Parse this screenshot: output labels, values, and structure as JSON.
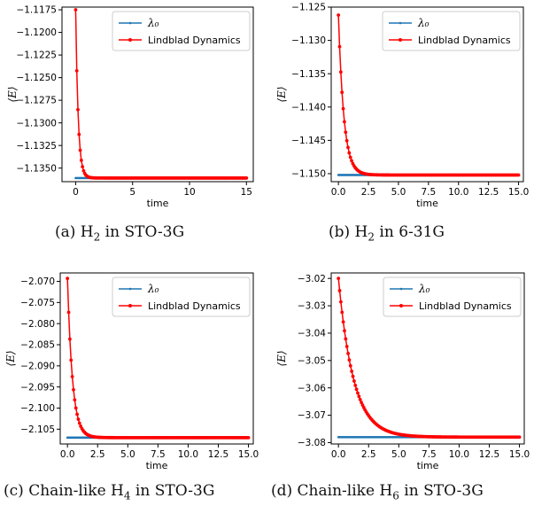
{
  "chart_data": [
    {
      "type": "line",
      "caption": {
        "prefix": "(a) H",
        "sub": "2",
        "suffix": " in STO-3G"
      },
      "xlabel": "time",
      "ylabel": "⟨E⟩",
      "xlim": [
        -1.2,
        15.6
      ],
      "ylim": [
        -1.1365,
        -1.1172
      ],
      "xticks": [
        0,
        5,
        10,
        15
      ],
      "xtick_labels": [
        "0",
        "5",
        "10",
        "15"
      ],
      "yticks": [
        -1.1175,
        -1.12,
        -1.1225,
        -1.125,
        -1.1275,
        -1.13,
        -1.1325,
        -1.135
      ],
      "ytick_labels": [
        "−1.1175",
        "−1.1200",
        "−1.1225",
        "−1.1250",
        "−1.1275",
        "−1.1300",
        "−1.1325",
        "−1.1350"
      ],
      "legend_position": "top-right",
      "series": [
        {
          "name": "λ₀",
          "color": "#1f77b4",
          "kind": "constant",
          "value": -1.1361,
          "t_end": 15,
          "n_points": 151
        },
        {
          "name": "Lindblad Dynamics",
          "color": "#ff0000",
          "kind": "relaxation",
          "start": -1.1175,
          "end": -1.1361,
          "rate": 4.5,
          "t_end": 15,
          "n_points": 151
        }
      ]
    },
    {
      "type": "line",
      "caption": {
        "prefix": "(b) H",
        "sub": "2",
        "suffix": " in 6-31G"
      },
      "xlabel": "time",
      "ylabel": "⟨E⟩",
      "xlim": [
        -0.6,
        15.4
      ],
      "ylim": [
        -1.1512,
        -1.125
      ],
      "xticks": [
        0,
        2.5,
        5,
        7.5,
        10,
        12.5,
        15
      ],
      "xtick_labels": [
        "0.0",
        "2.5",
        "5.0",
        "7.5",
        "10.0",
        "12.5",
        "15.0"
      ],
      "yticks": [
        -1.125,
        -1.13,
        -1.135,
        -1.14,
        -1.145,
        -1.15
      ],
      "ytick_labels": [
        "−1.125",
        "−1.130",
        "−1.135",
        "−1.140",
        "−1.145",
        "−1.150"
      ],
      "legend_position": "top-right",
      "series": [
        {
          "name": "λ₀",
          "color": "#1f77b4",
          "kind": "constant",
          "value": -1.1502,
          "t_end": 15,
          "n_points": 151
        },
        {
          "name": "Lindblad Dynamics",
          "color": "#ff0000",
          "kind": "relaxation",
          "start": -1.1262,
          "end": -1.1502,
          "rate": 2.2,
          "t_end": 15,
          "n_points": 151
        }
      ]
    },
    {
      "type": "line",
      "caption": {
        "prefix": "(c) Chain-like H",
        "sub": "4",
        "suffix": " in STO-3G"
      },
      "xlabel": "time",
      "ylabel": "⟨E⟩",
      "xlim": [
        -0.6,
        15.4
      ],
      "ylim": [
        -2.1085,
        -2.068
      ],
      "xticks": [
        0,
        2.5,
        5,
        7.5,
        10,
        12.5,
        15
      ],
      "xtick_labels": [
        "0.0",
        "2.5",
        "5.0",
        "7.5",
        "10.0",
        "12.5",
        "15.0"
      ],
      "yticks": [
        -2.07,
        -2.075,
        -2.08,
        -2.085,
        -2.09,
        -2.095,
        -2.1,
        -2.105
      ],
      "ytick_labels": [
        "−2.070",
        "−2.075",
        "−2.080",
        "−2.085",
        "−2.090",
        "−2.095",
        "−2.100",
        "−2.105"
      ],
      "legend_position": "top-right",
      "series": [
        {
          "name": "λ₀",
          "color": "#1f77b4",
          "kind": "constant",
          "value": -2.107,
          "t_end": 15,
          "n_points": 151
        },
        {
          "name": "Lindblad Dynamics",
          "color": "#ff0000",
          "kind": "relaxation",
          "start": -2.0693,
          "end": -2.107,
          "rate": 2.4,
          "t_end": 15,
          "n_points": 151
        }
      ]
    },
    {
      "type": "line",
      "caption": {
        "prefix": "(d) Chain-like H",
        "sub": "6",
        "suffix": " in STO-3G"
      },
      "xlabel": "time",
      "ylabel": "⟨E⟩",
      "xlim": [
        -0.6,
        15.4
      ],
      "ylim": [
        -3.0805,
        -3.018
      ],
      "xticks": [
        0,
        2.5,
        5,
        7.5,
        10,
        12.5,
        15
      ],
      "xtick_labels": [
        "0.0",
        "2.5",
        "5.0",
        "7.5",
        "10.0",
        "12.5",
        "15.0"
      ],
      "yticks": [
        -3.02,
        -3.03,
        -3.04,
        -3.05,
        -3.06,
        -3.07,
        -3.08
      ],
      "ytick_labels": [
        "−3.02",
        "−3.03",
        "−3.04",
        "−3.05",
        "−3.06",
        "−3.07",
        "−3.08"
      ],
      "legend_position": "top-right",
      "series": [
        {
          "name": "λ₀",
          "color": "#1f77b4",
          "kind": "constant",
          "value": -3.078,
          "t_end": 15,
          "n_points": 151
        },
        {
          "name": "Lindblad Dynamics",
          "color": "#ff0000",
          "kind": "relaxation",
          "start": -3.02,
          "end": -3.078,
          "rate": 0.8,
          "t_end": 15,
          "n_points": 151
        }
      ]
    }
  ]
}
